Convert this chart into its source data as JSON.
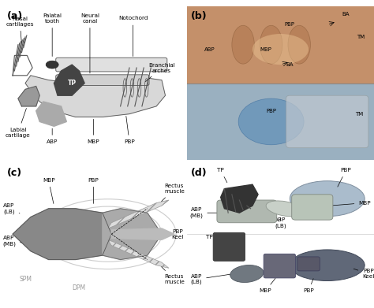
{
  "figure_size": [
    4.74,
    3.91
  ],
  "dpi": 100,
  "background_color": "#ffffff",
  "panel_positions": {
    "a": [
      0.01,
      0.48,
      0.48,
      0.5
    ],
    "b": [
      0.5,
      0.48,
      0.5,
      0.5
    ],
    "c": [
      0.01,
      0.01,
      0.48,
      0.46
    ],
    "d": [
      0.5,
      0.01,
      0.5,
      0.46
    ]
  }
}
